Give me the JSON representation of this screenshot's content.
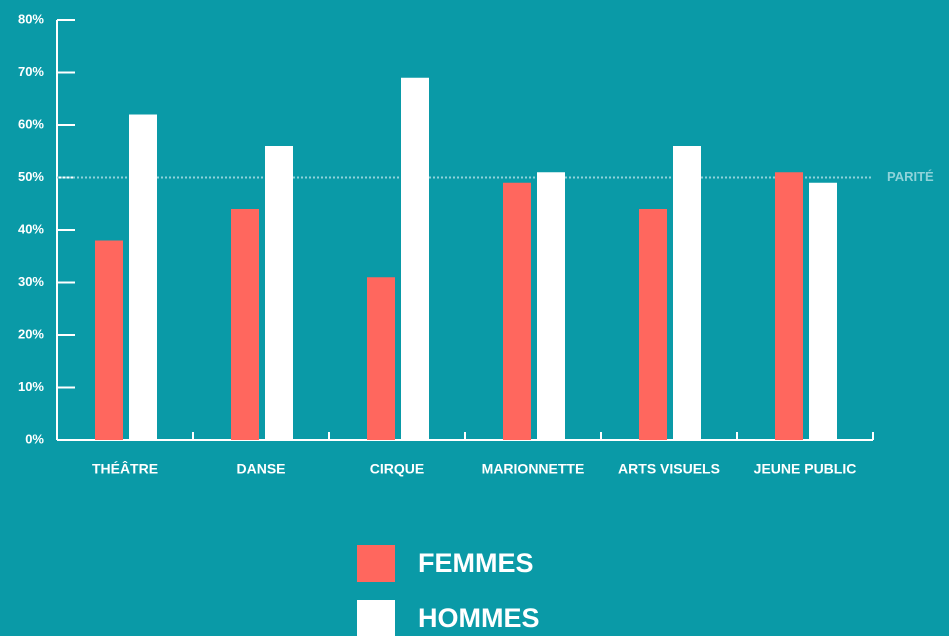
{
  "chart_data": {
    "type": "bar",
    "categories": [
      "THÉÂTRE",
      "DANSE",
      "CIRQUE",
      "MARIONNETTE",
      "ARTS VISUELS",
      "JEUNE PUBLIC"
    ],
    "series": [
      {
        "name": "FEMMES",
        "color": "#ff675e",
        "values": [
          38,
          44,
          31,
          49,
          44,
          51
        ]
      },
      {
        "name": "HOMMES",
        "color": "#ffffff",
        "values": [
          62,
          56,
          69,
          51,
          56,
          49
        ]
      }
    ],
    "ylim": [
      0,
      80
    ],
    "yticks": [
      {
        "value": 0,
        "label": "0%"
      },
      {
        "value": 10,
        "label": "10%"
      },
      {
        "value": 20,
        "label": "20%"
      },
      {
        "value": 30,
        "label": "30%"
      },
      {
        "value": 40,
        "label": "40%"
      },
      {
        "value": 50,
        "label": "50%"
      },
      {
        "value": 60,
        "label": "60%"
      },
      {
        "value": 70,
        "label": "70%"
      },
      {
        "value": 80,
        "label": "80%"
      }
    ],
    "reference": {
      "value": 50,
      "label": "PARITÉ"
    }
  }
}
